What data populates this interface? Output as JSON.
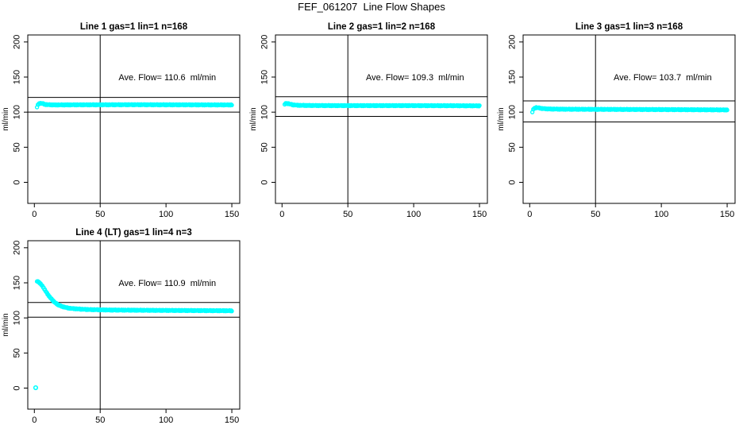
{
  "figure": {
    "title": "FEF_061207  Line Flow Shapes",
    "background_color": "#ffffff",
    "marker_color": "#00FFFF",
    "axis_color": "#000000"
  },
  "chart_data": [
    {
      "type": "scatter",
      "title": "Line 1 gas=1 lin=1 n=168",
      "ave_flow_value": 110.6,
      "ave_flow_label": "Ave. Flow= 110.6  ml/min",
      "ylabel": "ml/min",
      "xlim": [
        -5,
        156
      ],
      "ylim": [
        -30,
        210
      ],
      "xticks": [
        0,
        50,
        100,
        150
      ],
      "yticks": [
        0,
        50,
        100,
        150,
        200
      ],
      "hlines": [
        100,
        121
      ],
      "vlines": [
        50
      ],
      "annotation_xy": [
        101,
        150
      ],
      "grid": false,
      "series": [
        {
          "name": "flow",
          "keypoints": [
            [
              2,
              107
            ],
            [
              3,
              111.5
            ],
            [
              4,
              112.5
            ],
            [
              6,
              112.5
            ],
            [
              8,
              111
            ],
            [
              10,
              110.6
            ],
            [
              15,
              110.3
            ],
            [
              25,
              110.4
            ],
            [
              50,
              110.5
            ],
            [
              75,
              110.6
            ],
            [
              100,
              110.5
            ],
            [
              125,
              110.4
            ],
            [
              150,
              110.3
            ]
          ]
        }
      ],
      "outliers": []
    },
    {
      "type": "scatter",
      "title": "Line 2 gas=1 lin=2 n=168",
      "ave_flow_value": 109.3,
      "ave_flow_label": "Ave. Flow= 109.3  ml/min",
      "ylabel": "ml/min",
      "xlim": [
        -5,
        156
      ],
      "ylim": [
        -30,
        210
      ],
      "xticks": [
        0,
        50,
        100,
        150
      ],
      "yticks": [
        0,
        50,
        100,
        150,
        200
      ],
      "hlines": [
        94,
        122
      ],
      "vlines": [
        50
      ],
      "annotation_xy": [
        101,
        150
      ],
      "grid": false,
      "series": [
        {
          "name": "flow",
          "keypoints": [
            [
              2,
              111
            ],
            [
              3,
              112.5
            ],
            [
              5,
              112
            ],
            [
              8,
              110.5
            ],
            [
              12,
              109.8
            ],
            [
              20,
              109.5
            ],
            [
              40,
              109.3
            ],
            [
              70,
              109.3
            ],
            [
              100,
              109.3
            ],
            [
              130,
              109.2
            ],
            [
              150,
              109
            ]
          ]
        }
      ],
      "outliers": []
    },
    {
      "type": "scatter",
      "title": "Line 3 gas=1 lin=3 n=168",
      "ave_flow_value": 103.7,
      "ave_flow_label": "Ave. Flow= 103.7  ml/min",
      "ylabel": "ml/min",
      "xlim": [
        -5,
        156
      ],
      "ylim": [
        -30,
        210
      ],
      "xticks": [
        0,
        50,
        100,
        150
      ],
      "yticks": [
        0,
        50,
        100,
        150,
        200
      ],
      "hlines": [
        86,
        116
      ],
      "vlines": [
        50
      ],
      "annotation_xy": [
        101,
        150
      ],
      "grid": false,
      "series": [
        {
          "name": "flow",
          "keypoints": [
            [
              2,
              100
            ],
            [
              3,
              105
            ],
            [
              5,
              106.5
            ],
            [
              7,
              106
            ],
            [
              10,
              105
            ],
            [
              15,
              104.5
            ],
            [
              25,
              104.2
            ],
            [
              50,
              104
            ],
            [
              80,
              103.8
            ],
            [
              110,
              103.6
            ],
            [
              140,
              103.3
            ],
            [
              150,
              103.2
            ]
          ]
        }
      ],
      "outliers": []
    },
    {
      "type": "scatter",
      "title": "Line 4 (LT) gas=1 lin=4 n=3",
      "ave_flow_value": 110.9,
      "ave_flow_label": "Ave. Flow= 110.9  ml/min",
      "ylabel": "ml/min",
      "xlim": [
        -5,
        156
      ],
      "ylim": [
        -30,
        210
      ],
      "xticks": [
        0,
        50,
        100,
        150
      ],
      "yticks": [
        0,
        50,
        100,
        150,
        200
      ],
      "hlines": [
        101,
        122
      ],
      "vlines": [
        50
      ],
      "annotation_xy": [
        101,
        150
      ],
      "grid": false,
      "series": [
        {
          "name": "flow",
          "keypoints": [
            [
              2,
              152
            ],
            [
              3,
              151.5
            ],
            [
              4,
              150
            ],
            [
              5,
              148
            ],
            [
              6,
              145.5
            ],
            [
              7,
              143
            ],
            [
              8,
              140
            ],
            [
              9,
              137
            ],
            [
              10,
              134
            ],
            [
              11,
              131.5
            ],
            [
              12,
              129
            ],
            [
              13,
              127
            ],
            [
              14,
              125
            ],
            [
              15,
              123
            ],
            [
              16,
              121.5
            ],
            [
              17,
              120
            ],
            [
              18,
              118.8
            ],
            [
              19,
              117.8
            ],
            [
              20,
              117
            ],
            [
              22,
              115.8
            ],
            [
              24,
              114.8
            ],
            [
              26,
              114
            ],
            [
              28,
              113.5
            ],
            [
              30,
              113.2
            ],
            [
              35,
              112.5
            ],
            [
              40,
              112
            ],
            [
              50,
              111.5
            ],
            [
              60,
              111.2
            ],
            [
              75,
              111
            ],
            [
              90,
              110.8
            ],
            [
              110,
              110.6
            ],
            [
              130,
              110.4
            ],
            [
              150,
              110.2
            ]
          ]
        }
      ],
      "outliers": [
        [
          1,
          0.5
        ]
      ]
    }
  ]
}
